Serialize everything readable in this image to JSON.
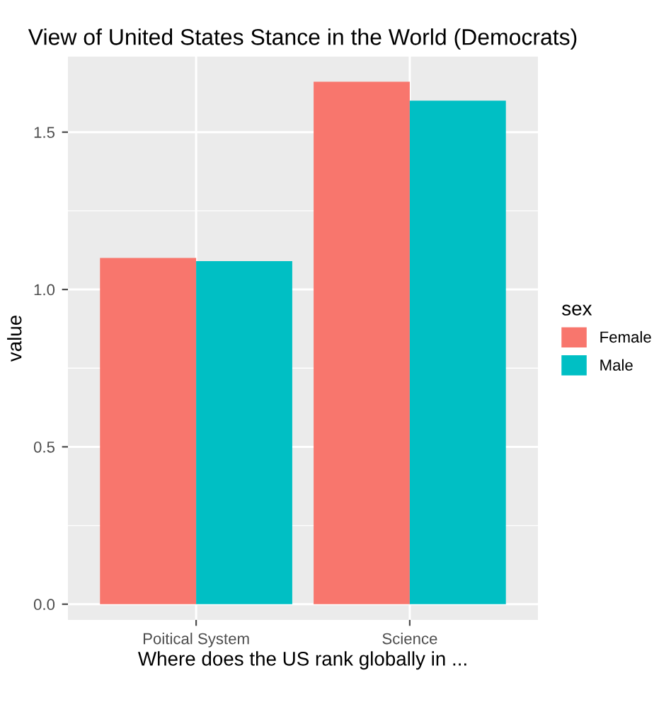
{
  "chart_data": {
    "type": "bar",
    "title": "View of United States Stance in the World (Democrats)",
    "xlabel": "Where does the US rank globally in ...",
    "ylabel": "value",
    "legend_title": "sex",
    "categories": [
      "Poitical System",
      "Science"
    ],
    "series": [
      {
        "name": "Female",
        "color": "#f8766d",
        "values": [
          1.1,
          1.66
        ]
      },
      {
        "name": "Male",
        "color": "#00bfc4",
        "values": [
          1.09,
          1.6
        ]
      }
    ],
    "ylim": [
      -0.05,
      1.74
    ],
    "yticks": [
      {
        "value": 0,
        "label": "0.0"
      },
      {
        "value": 0.5,
        "label": "0.5"
      },
      {
        "value": 1,
        "label": "1.0"
      },
      {
        "value": 1.5,
        "label": "1.5"
      }
    ],
    "grid": true,
    "legend": "right"
  }
}
